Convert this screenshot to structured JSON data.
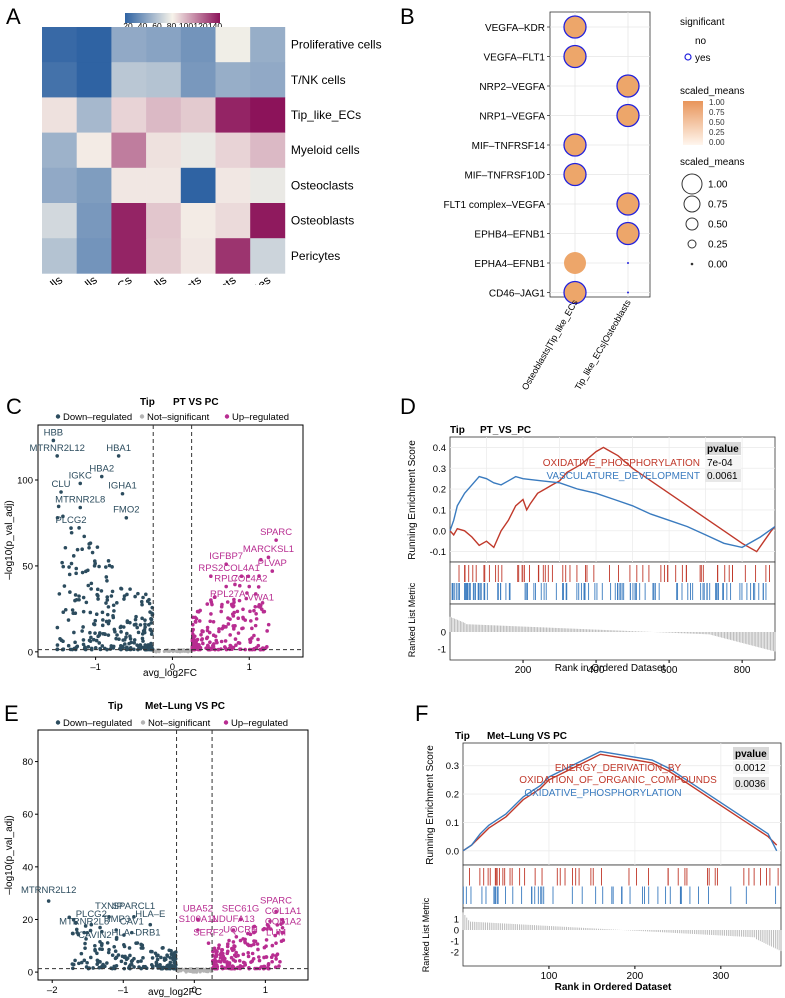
{
  "colors": {
    "heat_low": "#2f63a3",
    "heat_mid": "#f7f3ea",
    "heat_high": "#8c135a",
    "down": "#2c4c5e",
    "up": "#b82d91",
    "ns": "#b3b3b3",
    "dot_fill": "#eda66a",
    "dot_ring": "#2222dd",
    "gsea_red": "#c0392b",
    "gsea_blue": "#3a7bbf"
  },
  "panels": {
    "A": {
      "letter": "A",
      "legend_ticks": [
        "20",
        "40",
        "60",
        "80",
        "100",
        "120",
        "140"
      ],
      "rows": [
        "Proliferative cells",
        "T/NK cells",
        "Tip_like_ECs",
        "Myeloid cells",
        "Osteoclasts",
        "Osteoblasts",
        "Pericytes"
      ],
      "cols": [
        "Proliferative cells",
        "T/NK cells",
        "Tip_like_ECs",
        "Myeloid cells",
        "Osteoclasts",
        "Osteoblasts",
        "Pericytes"
      ],
      "matrix": [
        [
          18,
          15,
          48,
          45,
          38,
          80,
          50
        ],
        [
          22,
          12,
          62,
          60,
          40,
          50,
          48
        ],
        [
          88,
          55,
          92,
          100,
          95,
          145,
          150
        ],
        [
          52,
          85,
          118,
          88,
          78,
          92,
          100
        ],
        [
          48,
          42,
          86,
          86,
          15,
          86,
          78
        ],
        [
          70,
          40,
          145,
          96,
          85,
          90,
          148
        ],
        [
          60,
          38,
          145,
          95,
          86,
          140,
          68
        ]
      ]
    },
    "B": {
      "letter": "B",
      "rows": [
        "VEGFA–KDR",
        "VEGFA–FLT1",
        "NRP2–VEGFA",
        "NRP1–VEGFA",
        "MIF–TNFRSF14",
        "MIF–TNFRSF10D",
        "FLT1 complex–VEGFA",
        "EPHB4–EFNB1",
        "EPHA4–EFNB1",
        "CD46–JAG1"
      ],
      "cols": [
        "Osteoblasts|Tip_like_ECs",
        "Tip_like_ECs|Osteoblasts"
      ],
      "points": [
        {
          "row": 0,
          "col": 0,
          "scaled_mean": 1.0,
          "significant": "yes"
        },
        {
          "row": 1,
          "col": 0,
          "scaled_mean": 1.0,
          "significant": "yes"
        },
        {
          "row": 2,
          "col": 1,
          "scaled_mean": 1.0,
          "significant": "yes"
        },
        {
          "row": 3,
          "col": 1,
          "scaled_mean": 1.0,
          "significant": "yes"
        },
        {
          "row": 4,
          "col": 0,
          "scaled_mean": 1.0,
          "significant": "yes"
        },
        {
          "row": 5,
          "col": 0,
          "scaled_mean": 1.0,
          "significant": "yes"
        },
        {
          "row": 6,
          "col": 1,
          "scaled_mean": 1.0,
          "significant": "yes"
        },
        {
          "row": 7,
          "col": 1,
          "scaled_mean": 1.0,
          "significant": "yes"
        },
        {
          "row": 8,
          "col": 0,
          "scaled_mean": 1.0,
          "significant": "no"
        },
        {
          "row": 9,
          "col": 0,
          "scaled_mean": 1.0,
          "significant": "yes"
        },
        {
          "row": 8,
          "col": 1,
          "scaled_mean": 0.0,
          "significant": "no"
        },
        {
          "row": 9,
          "col": 1,
          "scaled_mean": 0.0,
          "significant": "no"
        }
      ],
      "legend_significant_title": "significant",
      "legend_sig_no": "no",
      "legend_sig_yes": "yes",
      "legend_color_title": "scaled_means",
      "legend_color_ticks": [
        "1.00",
        "0.75",
        "0.50",
        "0.25",
        "0.00"
      ],
      "legend_size_title": "scaled_means",
      "legend_size_ticks": [
        "1.00",
        "0.75",
        "0.50",
        "0.25",
        "0.00"
      ]
    },
    "C": {
      "letter": "C",
      "title_left": "Tip",
      "title_right": "PT VS PC",
      "legend": [
        "Down–regulated",
        "Not–significant",
        "Up–regulated"
      ],
      "xlabel": "avg_log2FC",
      "ylabel": "–log10(p_val_adj)",
      "xticks": [
        "–1",
        "0",
        "1"
      ],
      "yticks": [
        "0",
        "50",
        "100"
      ],
      "labels_down": [
        {
          "text": "HBB",
          "x": -1.55,
          "y": 126
        },
        {
          "text": "MTRNR2L12",
          "x": -1.5,
          "y": 117
        },
        {
          "text": "HBA1",
          "x": -0.7,
          "y": 117
        },
        {
          "text": "HBA2",
          "x": -0.92,
          "y": 105
        },
        {
          "text": "IGKC",
          "x": -1.2,
          "y": 101
        },
        {
          "text": "CLU",
          "x": -1.45,
          "y": 96
        },
        {
          "text": "IGHA1",
          "x": -0.65,
          "y": 95
        },
        {
          "text": "MTRNR2L8",
          "x": -1.2,
          "y": 87
        },
        {
          "text": "FMO2",
          "x": -0.6,
          "y": 81
        },
        {
          "text": "PLCG2",
          "x": -1.32,
          "y": 75
        }
      ],
      "labels_up": [
        {
          "text": "SPARC",
          "x": 1.35,
          "y": 68
        },
        {
          "text": "MARCKSL1",
          "x": 1.25,
          "y": 58
        },
        {
          "text": "IGFBP7",
          "x": 0.7,
          "y": 54
        },
        {
          "text": "PLVAP",
          "x": 1.3,
          "y": 50
        },
        {
          "text": "RPS2",
          "x": 0.5,
          "y": 47
        },
        {
          "text": "COL4A1",
          "x": 0.9,
          "y": 47
        },
        {
          "text": "RPL7",
          "x": 0.7,
          "y": 41
        },
        {
          "text": "COL4A2",
          "x": 1.0,
          "y": 41
        },
        {
          "text": "RPL27A",
          "x": 0.72,
          "y": 32
        },
        {
          "text": "VWA1",
          "x": 1.15,
          "y": 30
        }
      ]
    },
    "D": {
      "letter": "D",
      "title_left": "Tip",
      "title_right": "PT_VS_PC",
      "ylabel_top": "Running Enrichment Score",
      "ylabel_bottom": "Ranked List Metric",
      "xlabel": "Rank in Ordered Dataset",
      "xticks": [
        "200",
        "400",
        "600",
        "800"
      ],
      "yticks_top": [
        "0.4",
        "0.3",
        "0.2",
        "0.1",
        "0.0",
        "-0.1"
      ],
      "yticks_bottom": [
        "0",
        "-1"
      ],
      "pvalue_header": "pvalue",
      "terms": [
        {
          "name": "OXIDATIVE_PHOSPHORYLATION",
          "pvalue": "7e-04",
          "color": "#c0392b"
        },
        {
          "name": "VASCULATURE_DEVELOPMENT",
          "pvalue": "0.0061",
          "color": "#3a7bbf"
        }
      ]
    },
    "E": {
      "letter": "E",
      "title_left": "Tip",
      "title_right": "Met–Lung  VS   PC",
      "legend": [
        "Down–regulated",
        "Not–significant",
        "Up–regulated"
      ],
      "xlabel": "avg_log2FC",
      "ylabel": "–log10(p_val_adj)",
      "xticks": [
        "–2",
        "–1",
        "0",
        "1"
      ],
      "yticks": [
        "0",
        "20",
        "40",
        "60",
        "80"
      ],
      "labels_down": [
        {
          "text": "MTRNR2L12",
          "x": -2.05,
          "y": 30
        },
        {
          "text": "TXNIP",
          "x": -1.2,
          "y": 24
        },
        {
          "text": "SPARCL1",
          "x": -0.85,
          "y": 24
        },
        {
          "text": "PLCG2",
          "x": -1.45,
          "y": 21
        },
        {
          "text": "HLA–E",
          "x": -0.62,
          "y": 21
        },
        {
          "text": "TIMP3",
          "x": -1.1,
          "y": 19
        },
        {
          "text": "MTRNR2L8",
          "x": -1.55,
          "y": 18
        },
        {
          "text": "CAV1",
          "x": -0.88,
          "y": 18
        },
        {
          "text": "HLA–DRB1",
          "x": -0.82,
          "y": 14
        },
        {
          "text": "CAVIN2",
          "x": -1.4,
          "y": 13
        }
      ],
      "labels_up": [
        {
          "text": "SPARC",
          "x": 1.15,
          "y": 26
        },
        {
          "text": "UBA52",
          "x": 0.05,
          "y": 23
        },
        {
          "text": "SEC61G",
          "x": 0.65,
          "y": 23
        },
        {
          "text": "COL1A1",
          "x": 1.25,
          "y": 22
        },
        {
          "text": "S100A11",
          "x": 0.05,
          "y": 19
        },
        {
          "text": "NDUFA13",
          "x": 0.55,
          "y": 19
        },
        {
          "text": "COL1A2",
          "x": 1.25,
          "y": 18
        },
        {
          "text": "SERF2",
          "x": 0.2,
          "y": 14
        },
        {
          "text": "UQCRH",
          "x": 0.65,
          "y": 15
        },
        {
          "text": "LUM",
          "x": 1.15,
          "y": 14
        }
      ]
    },
    "F": {
      "letter": "F",
      "title_left": "Tip",
      "title_right": "Met–Lung VS PC",
      "ylabel_top": "Running Enrichment Score",
      "ylabel_bottom": "Ranked List Metric",
      "xlabel": "Rank in Ordered Dataset",
      "xticks": [
        "100",
        "200",
        "300"
      ],
      "yticks_top": [
        "0.3",
        "0.2",
        "0.1",
        "0.0"
      ],
      "yticks_bottom": [
        "1",
        "0",
        "-1",
        "-2"
      ],
      "pvalue_header": "pvalue",
      "terms": [
        {
          "name_line1": "ENERGY_DERIVATION_BY",
          "name_line2": "OXIDATION_OF_ORGANIC_COMPOUNDS",
          "pvalue": "0.0012",
          "color": "#c0392b"
        },
        {
          "name_line1": "OXIDATIVE_PHOSPHORYLATION",
          "name_line2": "",
          "pvalue": "0.0036",
          "color": "#3a7bbf"
        }
      ]
    }
  },
  "chart_data": [
    {
      "type": "heatmap",
      "panel": "A",
      "rows": [
        "Proliferative cells",
        "T/NK cells",
        "Tip_like_ECs",
        "Myeloid cells",
        "Osteoclasts",
        "Osteoblasts",
        "Pericytes"
      ],
      "cols": [
        "Proliferative cells",
        "T/NK cells",
        "Tip_like_ECs",
        "Myeloid cells",
        "Osteoclasts",
        "Osteoblasts",
        "Pericytes"
      ],
      "color_range": [
        20,
        150
      ]
    },
    {
      "type": "scatter",
      "panel": "B",
      "title": "",
      "xlabel": "",
      "ylabel": "",
      "note": "dot plot of ligand–receptor pairs, size and colour = scaled_means"
    },
    {
      "type": "scatter",
      "panel": "C",
      "xlabel": "avg_log2FC",
      "ylabel": "–log10(p_val_adj)",
      "xlim": [
        -1.75,
        1.7
      ],
      "ylim": [
        -3,
        132
      ],
      "thresholds_x": [
        -0.25,
        0.25
      ],
      "threshold_y": 1.3
    },
    {
      "type": "line",
      "panel": "D",
      "xlabel": "Rank in Ordered Dataset",
      "ylabel": "Running Enrichment Score",
      "xlim": [
        0,
        890
      ],
      "ylim": [
        -0.15,
        0.45
      ],
      "series": [
        {
          "name": "OXIDATIVE_PHOSPHORYLATION",
          "x": [
            0,
            10,
            20,
            40,
            60,
            80,
            100,
            120,
            140,
            160,
            180,
            200,
            210,
            220,
            240,
            260,
            280,
            300,
            320,
            340,
            360,
            380,
            400,
            420,
            430,
            460,
            500,
            550,
            600,
            650,
            700,
            750,
            800,
            840,
            860,
            880,
            890
          ],
          "y": [
            0.0,
            -0.02,
            0.01,
            0.0,
            -0.03,
            -0.07,
            -0.05,
            -0.08,
            0.0,
            0.05,
            0.12,
            0.15,
            0.1,
            0.13,
            0.18,
            0.2,
            0.22,
            0.24,
            0.28,
            0.3,
            0.32,
            0.35,
            0.38,
            0.4,
            0.39,
            0.36,
            0.3,
            0.24,
            0.18,
            0.12,
            0.06,
            0.0,
            -0.06,
            -0.1,
            -0.05,
            0.0,
            0.02
          ]
        },
        {
          "name": "VASCULATURE_DEVELOPMENT",
          "x": [
            0,
            10,
            20,
            40,
            60,
            80,
            100,
            120,
            140,
            160,
            180,
            200,
            250,
            300,
            350,
            400,
            450,
            500,
            550,
            600,
            650,
            700,
            750,
            800,
            850,
            890
          ],
          "y": [
            0.0,
            0.05,
            0.12,
            0.18,
            0.22,
            0.26,
            0.25,
            0.23,
            0.22,
            0.24,
            0.26,
            0.25,
            0.24,
            0.23,
            0.2,
            0.18,
            0.15,
            0.12,
            0.08,
            0.05,
            0.02,
            -0.02,
            -0.06,
            -0.08,
            -0.03,
            0.02
          ]
        }
      ]
    },
    {
      "type": "scatter",
      "panel": "E",
      "xlabel": "avg_log2FC",
      "ylabel": "–log10(p_val_adj)",
      "xlim": [
        -2.2,
        1.6
      ],
      "ylim": [
        -3,
        92
      ],
      "thresholds_x": [
        -0.25,
        0.25
      ],
      "threshold_y": 1.3
    },
    {
      "type": "line",
      "panel": "F",
      "xlabel": "Rank in Ordered Dataset",
      "ylabel": "Running Enrichment Score",
      "xlim": [
        0,
        370
      ],
      "ylim": [
        -0.05,
        0.38
      ],
      "series": [
        {
          "name": "ENERGY_DERIVATION_BY_OXIDATION_OF_ORGANIC_COMPOUNDS",
          "x": [
            0,
            10,
            20,
            30,
            40,
            50,
            60,
            70,
            80,
            90,
            100,
            120,
            140,
            160,
            180,
            200,
            220,
            240,
            260,
            280,
            300,
            320,
            340,
            355,
            365
          ],
          "y": [
            0.0,
            0.02,
            0.05,
            0.08,
            0.1,
            0.12,
            0.15,
            0.18,
            0.2,
            0.22,
            0.25,
            0.28,
            0.31,
            0.34,
            0.33,
            0.32,
            0.31,
            0.28,
            0.24,
            0.2,
            0.16,
            0.12,
            0.08,
            0.05,
            0.02
          ]
        },
        {
          "name": "OXIDATIVE_PHOSPHORYLATION",
          "x": [
            0,
            10,
            20,
            30,
            40,
            50,
            60,
            70,
            80,
            90,
            100,
            120,
            140,
            160,
            180,
            200,
            220,
            240,
            260,
            280,
            300,
            320,
            340,
            355,
            365
          ],
          "y": [
            0.0,
            0.02,
            0.06,
            0.09,
            0.11,
            0.13,
            0.16,
            0.19,
            0.21,
            0.23,
            0.26,
            0.29,
            0.32,
            0.35,
            0.34,
            0.33,
            0.32,
            0.29,
            0.25,
            0.21,
            0.17,
            0.13,
            0.09,
            0.06,
            0.0
          ]
        }
      ]
    }
  ]
}
